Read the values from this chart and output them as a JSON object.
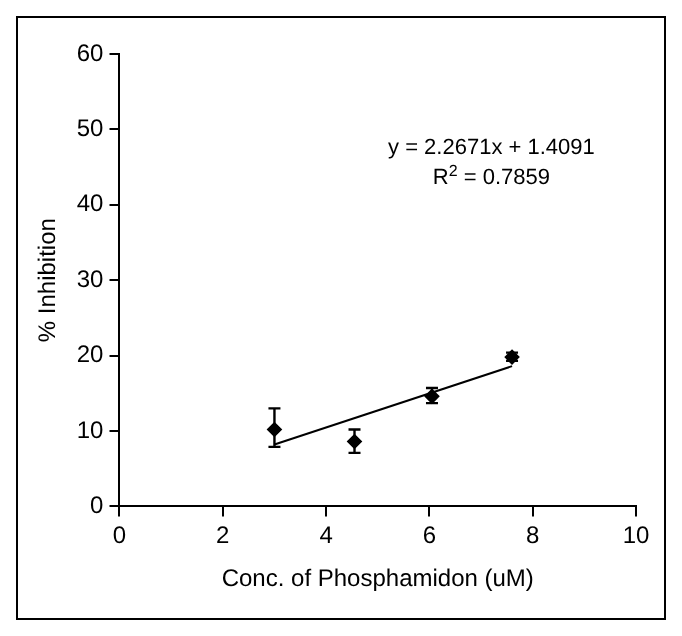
{
  "chart_data": {
    "type": "scatter",
    "xlabel": "Conc. of Phosphamidon (uM)",
    "ylabel": "% Inhibition",
    "xlim": [
      0,
      10
    ],
    "xticks": [
      0,
      2,
      4,
      6,
      8,
      10
    ],
    "ylim": [
      0,
      60
    ],
    "yticks": [
      0,
      10,
      20,
      30,
      40,
      50,
      60
    ],
    "grid": false,
    "legend": false,
    "marker": "diamond",
    "series": [
      {
        "color": "#000000",
        "x": [
          3,
          4.55,
          6.05,
          7.6
        ],
        "values": [
          10.2,
          8.6,
          14.6,
          19.8
        ],
        "errors": [
          [
            7.9,
            13
          ],
          [
            7.1,
            10.2
          ],
          [
            13.7,
            15.7
          ],
          [
            19.3,
            20.4
          ]
        ]
      },
      {
        "type": "line",
        "color": "#000000",
        "marker": "none",
        "x": [
          3,
          7.6
        ],
        "values": [
          8.2,
          18.6
        ]
      }
    ],
    "annotations": [
      "y = 2.2671x + 1.4091",
      "R$^{2}$ = 0.7859"
    ]
  }
}
